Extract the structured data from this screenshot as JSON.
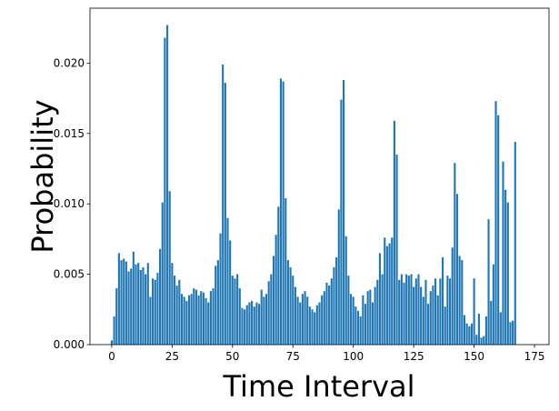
{
  "chart_data": {
    "type": "bar",
    "xlabel": "Time Interval",
    "ylabel": "Probability",
    "color": "#1f77b4",
    "x": [
      0,
      1,
      2,
      3,
      4,
      5,
      6,
      7,
      8,
      9,
      10,
      11,
      12,
      13,
      14,
      15,
      16,
      17,
      18,
      19,
      20,
      21,
      22,
      23,
      24,
      25,
      26,
      27,
      28,
      29,
      30,
      31,
      32,
      33,
      34,
      35,
      36,
      37,
      38,
      39,
      40,
      41,
      42,
      43,
      44,
      45,
      46,
      47,
      48,
      49,
      50,
      51,
      52,
      53,
      54,
      55,
      56,
      57,
      58,
      59,
      60,
      61,
      62,
      63,
      64,
      65,
      66,
      67,
      68,
      69,
      70,
      71,
      72,
      73,
      74,
      75,
      76,
      77,
      78,
      79,
      80,
      81,
      82,
      83,
      84,
      85,
      86,
      87,
      88,
      89,
      90,
      91,
      92,
      93,
      94,
      95,
      96,
      97,
      98,
      99,
      100,
      101,
      102,
      103,
      104,
      105,
      106,
      107,
      108,
      109,
      110,
      111,
      112,
      113,
      114,
      115,
      116,
      117,
      118,
      119,
      120,
      121,
      122,
      123,
      124,
      125,
      126,
      127,
      128,
      129,
      130,
      131,
      132,
      133,
      134,
      135,
      136,
      137,
      138,
      139,
      140,
      141,
      142,
      143,
      144,
      145,
      146,
      147,
      148,
      149,
      150,
      151,
      152,
      153,
      154,
      155,
      156,
      157,
      158,
      159,
      160,
      161,
      162,
      163,
      164,
      165,
      166,
      167
    ],
    "values": [
      0.0003,
      0.002,
      0.004,
      0.0065,
      0.006,
      0.0061,
      0.0059,
      0.0052,
      0.0054,
      0.0066,
      0.0057,
      0.0058,
      0.0053,
      0.0055,
      0.005,
      0.0058,
      0.0034,
      0.0047,
      0.0046,
      0.0051,
      0.0068,
      0.0101,
      0.0218,
      0.0227,
      0.0109,
      0.0058,
      0.0049,
      0.0042,
      0.0046,
      0.0036,
      0.0034,
      0.0031,
      0.0035,
      0.0036,
      0.004,
      0.0039,
      0.0035,
      0.0038,
      0.0037,
      0.0033,
      0.003,
      0.0038,
      0.004,
      0.0056,
      0.006,
      0.0079,
      0.0199,
      0.0186,
      0.009,
      0.0074,
      0.0049,
      0.0047,
      0.005,
      0.004,
      0.0026,
      0.0025,
      0.0028,
      0.003,
      0.0031,
      0.0027,
      0.003,
      0.0029,
      0.0039,
      0.0034,
      0.0036,
      0.0045,
      0.005,
      0.0063,
      0.0078,
      0.0098,
      0.0189,
      0.0187,
      0.0104,
      0.006,
      0.0055,
      0.0049,
      0.0041,
      0.0034,
      0.003,
      0.0036,
      0.0038,
      0.0034,
      0.0027,
      0.0025,
      0.0023,
      0.0028,
      0.003,
      0.0035,
      0.0038,
      0.0044,
      0.0042,
      0.0047,
      0.0055,
      0.0062,
      0.0096,
      0.0174,
      0.0188,
      0.0077,
      0.0049,
      0.0036,
      0.0034,
      0.0027,
      0.0024,
      0.002,
      0.0035,
      0.0029,
      0.0038,
      0.0039,
      0.003,
      0.0041,
      0.0046,
      0.0065,
      0.005,
      0.0076,
      0.007,
      0.0072,
      0.0076,
      0.0159,
      0.0135,
      0.0046,
      0.005,
      0.0044,
      0.005,
      0.0049,
      0.005,
      0.0041,
      0.0047,
      0.005,
      0.0041,
      0.0034,
      0.0046,
      0.0029,
      0.0038,
      0.0042,
      0.0047,
      0.0035,
      0.0047,
      0.0062,
      0.0027,
      0.0049,
      0.0047,
      0.0069,
      0.0129,
      0.0107,
      0.0063,
      0.006,
      0.0021,
      0.0015,
      0.0013,
      0.0015,
      0.0047,
      0.0007,
      0.0022,
      0.0005,
      0.0006,
      0.002,
      0.0089,
      0.0031,
      0.0057,
      0.0173,
      0.0163,
      0.0023,
      0.013,
      0.011,
      0.0101,
      0.0016,
      0.0017,
      0.0144
    ],
    "xlim": [
      -9,
      181
    ],
    "xticks": [
      0,
      25,
      50,
      75,
      100,
      125,
      150,
      175
    ],
    "ylim": [
      0,
      0.0239
    ],
    "yticks": [
      {
        "value": 0,
        "label": "0.000"
      },
      {
        "value": 0.005,
        "label": "0.005"
      },
      {
        "value": 0.01,
        "label": "0.010"
      },
      {
        "value": 0.015,
        "label": "0.015"
      },
      {
        "value": 0.02,
        "label": "0.020"
      }
    ]
  }
}
